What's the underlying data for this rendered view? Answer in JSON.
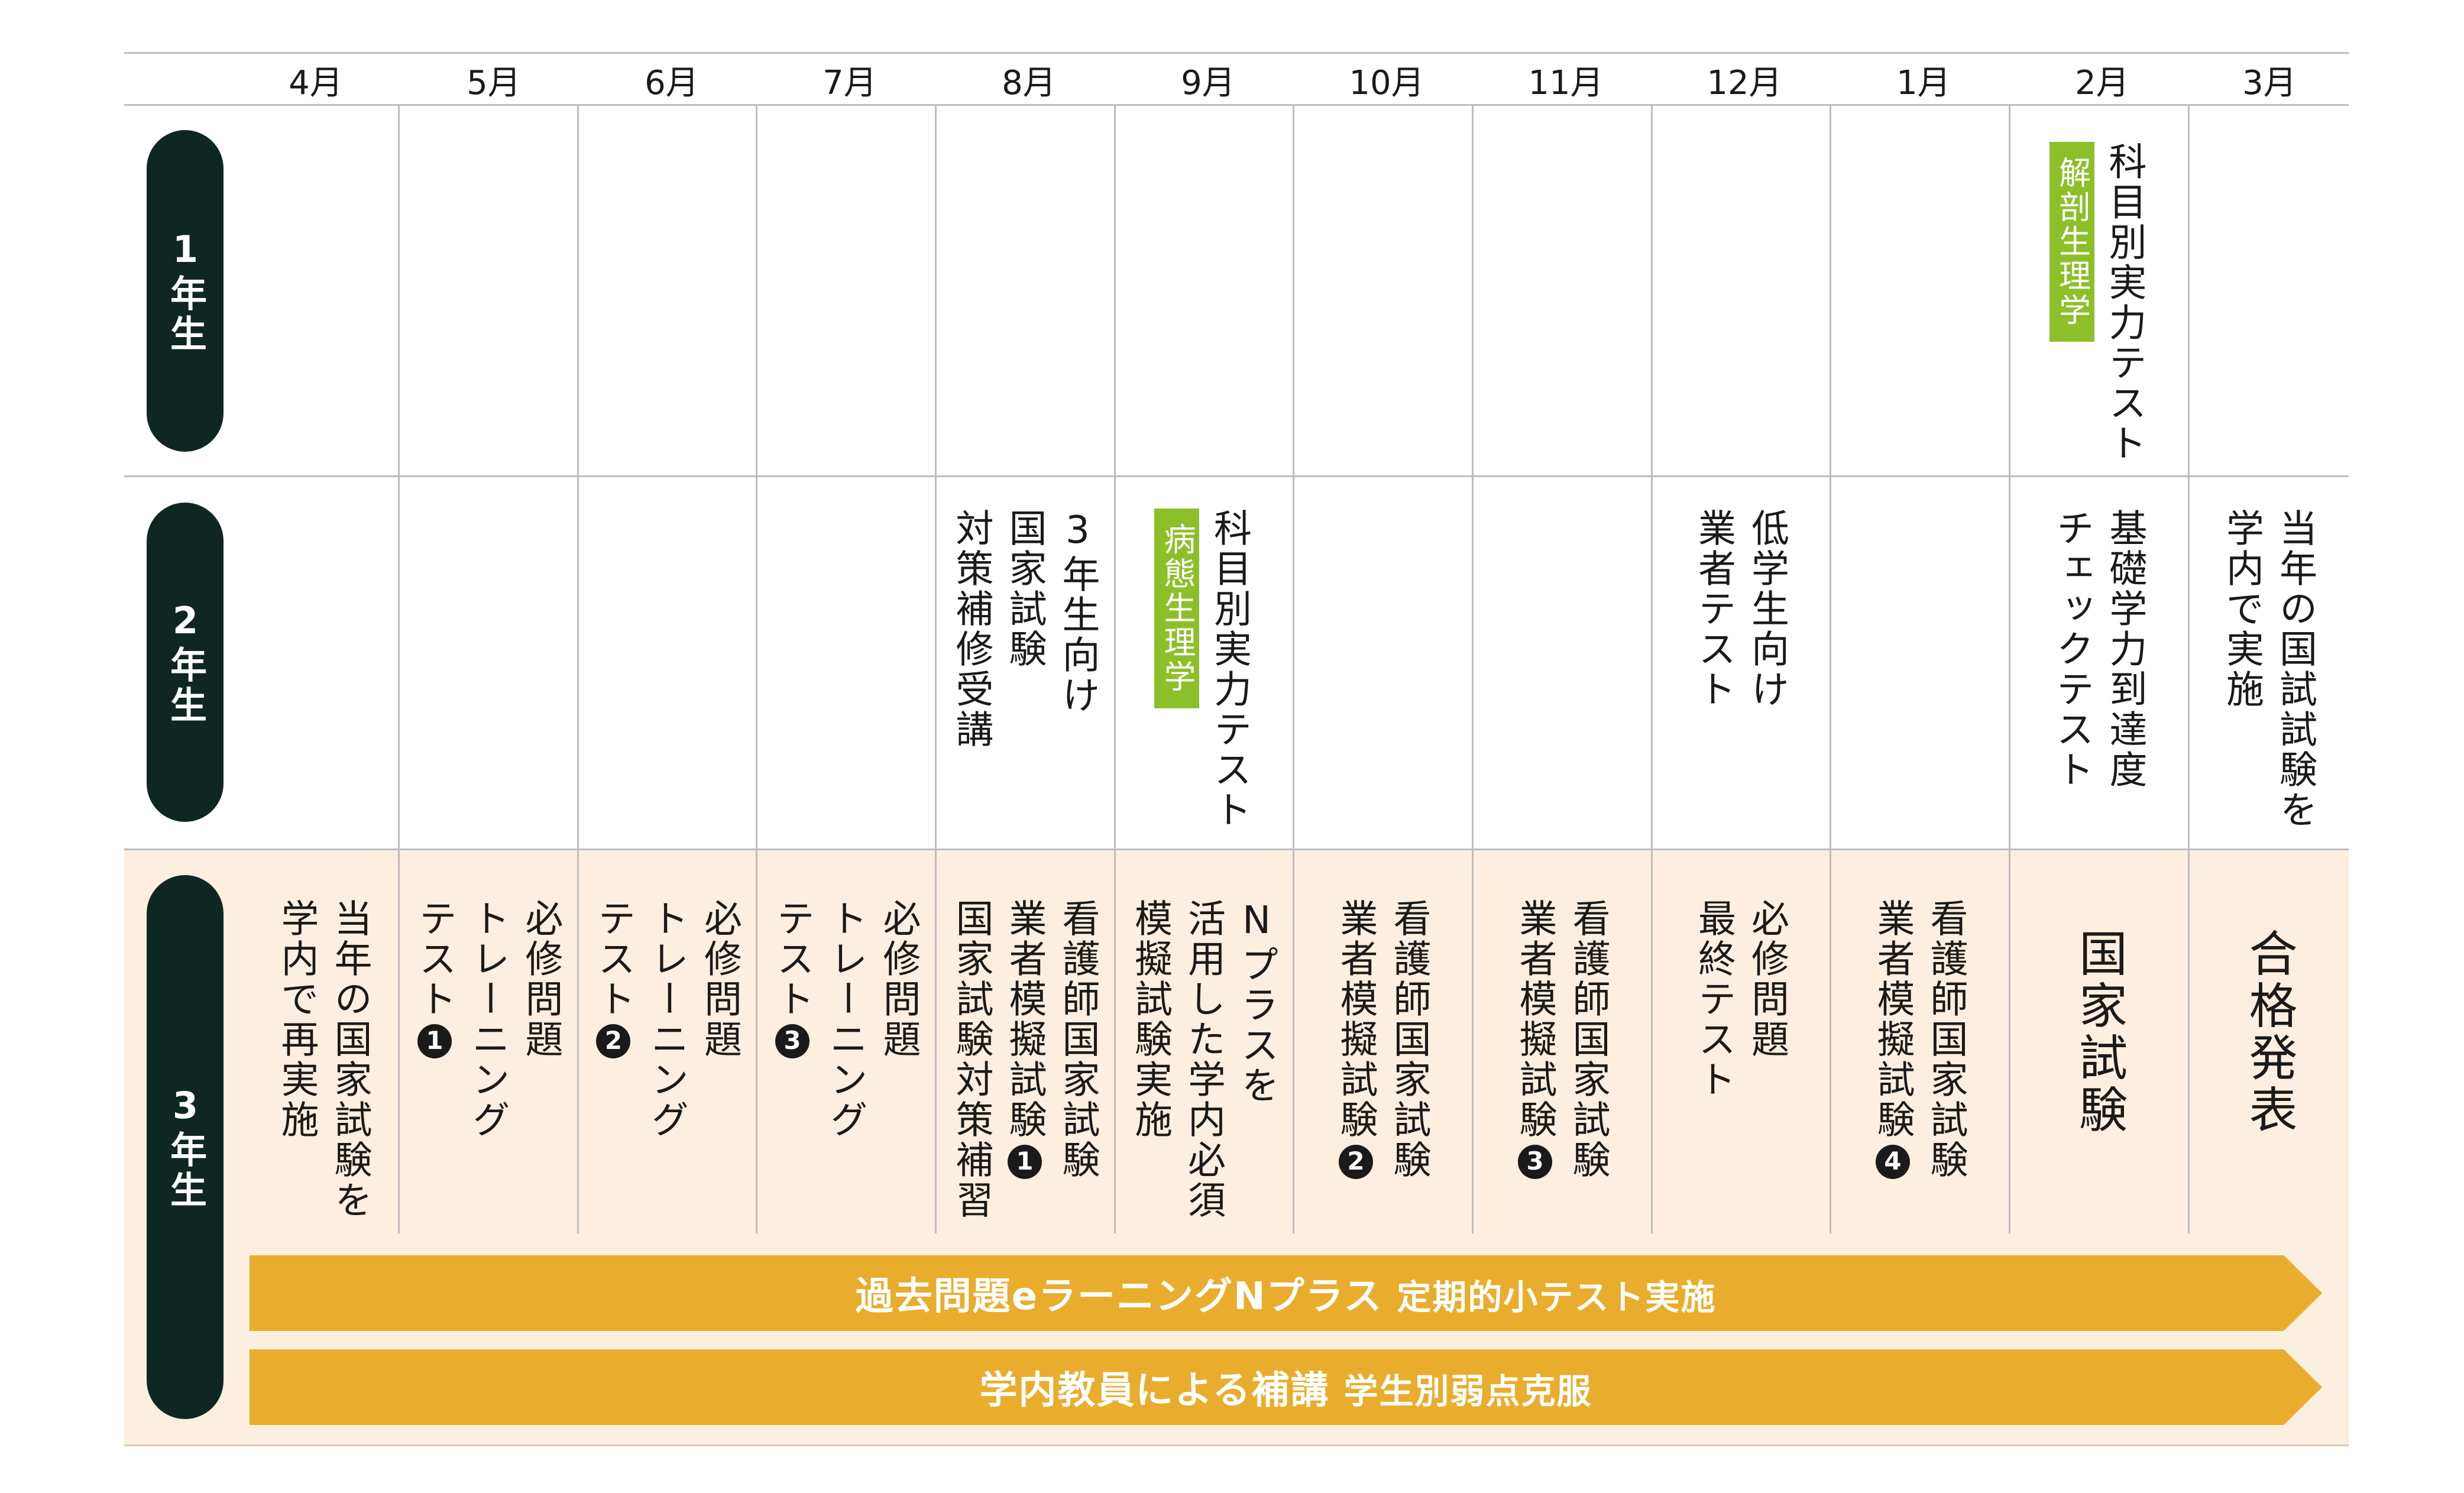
{
  "months": [
    "4月",
    "5月",
    "6月",
    "7月",
    "8月",
    "9月",
    "10月",
    "11月",
    "12月",
    "1月",
    "2月",
    "3月"
  ],
  "rows": {
    "year1": "1年生",
    "year2": "2年生",
    "year3": "3年生"
  },
  "year1": {
    "feb": {
      "tag": "解剖生理学",
      "lines": [
        "科目別実力テスト"
      ]
    }
  },
  "year2": {
    "aug": {
      "lines": [
        "3年生向け",
        "国家試験",
        "対策補修受講"
      ]
    },
    "sep": {
      "tag": "病態生理学",
      "lines": [
        "科目別実力テスト"
      ]
    },
    "dec": {
      "lines": [
        "低学生向け",
        "業者テスト"
      ]
    },
    "feb": {
      "lines": [
        "基礎学力到達度",
        "チェックテスト"
      ]
    },
    "mar": {
      "lines": [
        "当年の国試試験を",
        "学内で実施"
      ]
    }
  },
  "year3": {
    "apr": {
      "lines": [
        "当年の国家試験を",
        "学内で再実施"
      ]
    },
    "may": {
      "lines": [
        "必修問題",
        "トレーニング",
        "テスト"
      ],
      "num": "1"
    },
    "jun": {
      "lines": [
        "必修問題",
        "トレーニング",
        "テスト"
      ],
      "num": "2"
    },
    "jul": {
      "lines": [
        "必修問題",
        "トレーニング",
        "テスト"
      ],
      "num": "3"
    },
    "aug": {
      "lines": [
        "看護師国家試験",
        "業者模擬試験",
        "国家試験対策補習"
      ],
      "num": "1"
    },
    "sep": {
      "lines": [
        "Nプラスを",
        "活用した学内必須",
        "模擬試験実施"
      ]
    },
    "oct": {
      "lines": [
        "看護師国家試験",
        "業者模擬試験"
      ],
      "num": "2"
    },
    "nov": {
      "lines": [
        "看護師国家試験",
        "業者模擬試験"
      ],
      "num": "3"
    },
    "dec": {
      "lines": [
        "必修問題",
        "最終テスト"
      ]
    },
    "jan": {
      "lines": [
        "看護師国家試験",
        "業者模擬試験"
      ],
      "num": "4"
    },
    "feb": {
      "lines": [
        "国家試験"
      ]
    },
    "mar": {
      "lines": [
        "合格発表"
      ]
    }
  },
  "arrows": {
    "a1_main": "過去問題eラーニングNプラス",
    "a1_sub": "定期的小テスト実施",
    "a2_main": "学内教員による補講",
    "a2_sub": "学生別弱点克服"
  },
  "colors": {
    "pill": "#0f2722",
    "tag_green": "#8cc02a",
    "band_year3": "#fcefdf",
    "arrow": "#e9ad2e"
  }
}
